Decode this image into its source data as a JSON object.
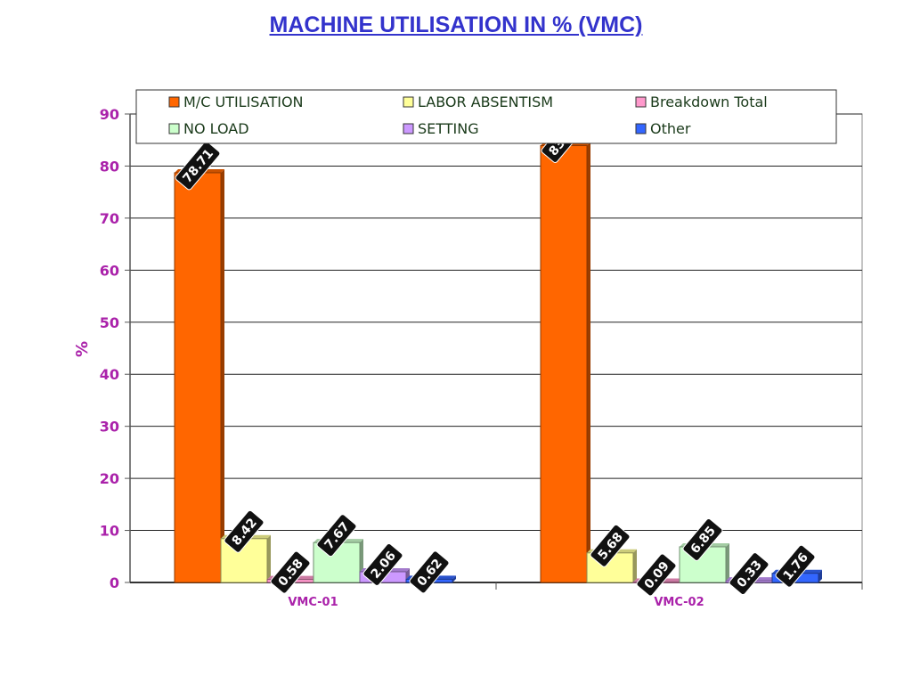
{
  "chart_data": {
    "type": "bar",
    "title": "MACHINE UTILISATION IN % (VMC)",
    "ylabel": "%",
    "xlabel": "",
    "ylim": [
      0,
      90
    ],
    "yticks": [
      0,
      10,
      20,
      30,
      40,
      50,
      60,
      70,
      80,
      90
    ],
    "grid": true,
    "legend_position": "top",
    "categories": [
      "VMC-01",
      "VMC-02"
    ],
    "series": [
      {
        "name": "M/C UTILISATION",
        "color": "#ff6600",
        "values": [
          78.71,
          83.92
        ]
      },
      {
        "name": "LABOR ABSENTISM",
        "color": "#ffff99",
        "values": [
          8.42,
          5.68
        ]
      },
      {
        "name": "Breakdown Total",
        "color": "#ff99cc",
        "values": [
          0.58,
          0.09
        ]
      },
      {
        "name": "NO LOAD",
        "color": "#ccffcc",
        "values": [
          7.67,
          6.85
        ]
      },
      {
        "name": "SETTING",
        "color": "#cc99ff",
        "values": [
          2.06,
          0.33
        ]
      },
      {
        "name": "Other",
        "color": "#3366ff",
        "values": [
          0.62,
          1.76
        ]
      }
    ]
  }
}
